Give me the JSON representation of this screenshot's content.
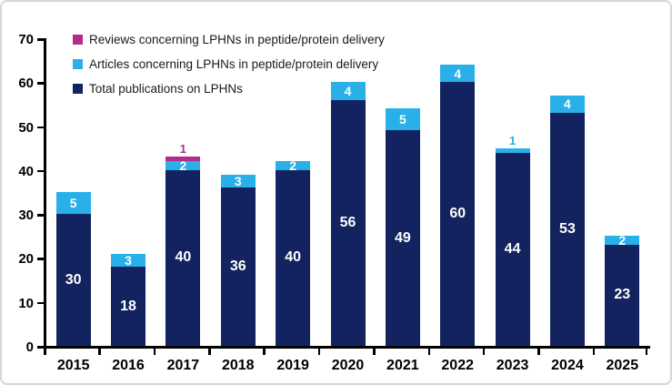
{
  "chart_data": {
    "type": "bar",
    "subtype": "stacked",
    "title": "",
    "xlabel": "",
    "ylabel": "",
    "categories": [
      "2015",
      "2016",
      "2017",
      "2018",
      "2019",
      "2020",
      "2021",
      "2022",
      "2023",
      "2024",
      "2025"
    ],
    "series": [
      {
        "name": "Total publications on LPHNs",
        "color": "#12235f",
        "values": [
          30,
          18,
          40,
          36,
          40,
          56,
          49,
          60,
          44,
          53,
          23
        ]
      },
      {
        "name": "Articles concerning LPHNs in peptide/protein delivery",
        "color": "#29b0e8",
        "values": [
          5,
          3,
          2,
          3,
          2,
          4,
          5,
          4,
          1,
          4,
          2
        ]
      },
      {
        "name": "Reviews concerning LPHNs in peptide/protein delivery",
        "color": "#b32c8c",
        "values": [
          0,
          0,
          1,
          0,
          0,
          0,
          0,
          0,
          0,
          0,
          0
        ]
      }
    ],
    "stack_totals": [
      35,
      21,
      43,
      39,
      42,
      60,
      54,
      64,
      45,
      57,
      25
    ],
    "ylim": [
      0,
      70
    ],
    "yticks": [
      0,
      10,
      20,
      30,
      40,
      50,
      60,
      70
    ],
    "grid": "off",
    "legend_position": "top-left",
    "legend_order": [
      "Reviews concerning LPHNs in peptide/protein delivery",
      "Articles concerning LPHNs in peptide/protein delivery",
      "Total publications on LPHNs"
    ],
    "value_label_color_inside": "#ffffff",
    "axis_color": "#000000",
    "background_color": "#ffffff",
    "border_color": "#d6d6d6"
  }
}
